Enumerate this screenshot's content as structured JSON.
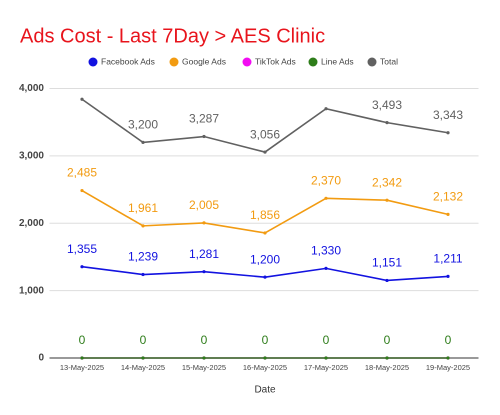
{
  "chart_data": {
    "type": "line",
    "title": "Ads Cost - Last 7Day > AES Clinic",
    "x_label": "Date",
    "categories": [
      "13-May-2025",
      "14-May-2025",
      "15-May-2025",
      "16-May-2025",
      "17-May-2025",
      "18-May-2025",
      "19-May-2025"
    ],
    "series": [
      {
        "name": "Facebook Ads",
        "color": "#1212e0",
        "values": [
          1355,
          1239,
          1281,
          1200,
          1330,
          1151,
          1211
        ],
        "value_labels": [
          "1,355",
          "1,239",
          "1,281",
          "1,200",
          "1,330",
          "1,151",
          "1,211"
        ]
      },
      {
        "name": "Google Ads",
        "color": "#f29b11",
        "values": [
          2485,
          1961,
          2005,
          1856,
          2370,
          2342,
          2132
        ],
        "value_labels": [
          "2,485",
          "1,961",
          "2,005",
          "1,856",
          "2,370",
          "2,342",
          "2,132"
        ]
      },
      {
        "name": "TikTok Ads",
        "color": "#f20cf2",
        "values": [
          0,
          0,
          0,
          0,
          0,
          0,
          0
        ],
        "value_labels": [
          null,
          null,
          null,
          null,
          null,
          null,
          null
        ]
      },
      {
        "name": "Line Ads",
        "color": "#2e7d1a",
        "values": [
          0,
          0,
          0,
          0,
          0,
          0,
          0
        ],
        "value_labels": [
          "0",
          "0",
          "0",
          "0",
          "0",
          "0",
          "0"
        ]
      },
      {
        "name": "Total",
        "color": "#616161",
        "values": [
          3840,
          3200,
          3287,
          3056,
          3700,
          3493,
          3343
        ],
        "value_labels": [
          null,
          "3,200",
          "3,287",
          "3,056",
          null,
          "3,493",
          "3,343"
        ]
      }
    ],
    "ylim": [
      0,
      4200
    ],
    "yticks": [
      0,
      {
        "value": 1000,
        "label": "1,000"
      },
      {
        "value": 2000,
        "label": "2,000"
      },
      {
        "value": 3000,
        "label": "3,000"
      },
      {
        "value": 4000,
        "label": "4,000"
      }
    ],
    "grid": true,
    "legend": "top"
  }
}
